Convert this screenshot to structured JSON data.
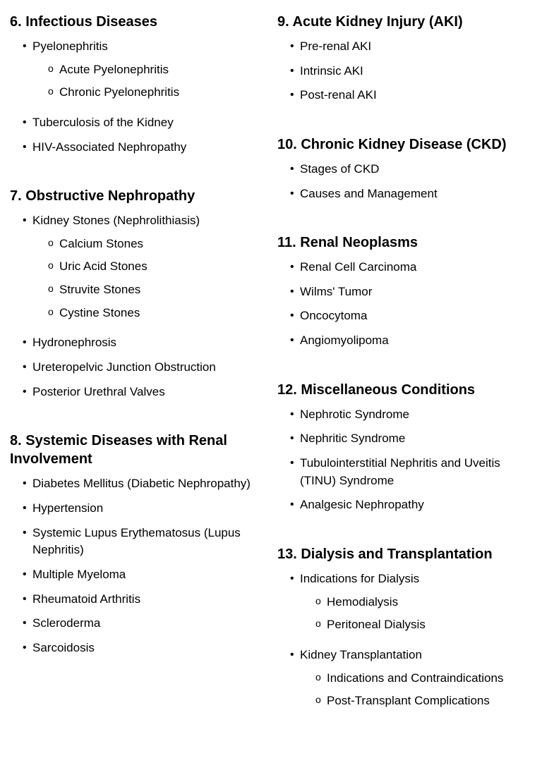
{
  "leftColumn": [
    {
      "title": "6. Infectious Diseases",
      "items": [
        {
          "label": "Pyelonephritis",
          "sub": [
            "Acute Pyelonephritis",
            "Chronic Pyelonephritis"
          ]
        },
        {
          "label": "Tuberculosis of the Kidney"
        },
        {
          "label": "HIV-Associated Nephropathy"
        }
      ]
    },
    {
      "title": "7. Obstructive Nephropathy",
      "items": [
        {
          "label": "Kidney Stones (Nephrolithiasis)",
          "sub": [
            "Calcium Stones",
            "Uric Acid Stones",
            "Struvite Stones",
            "Cystine Stones"
          ]
        },
        {
          "label": "Hydronephrosis"
        },
        {
          "label": "Ureteropelvic Junction Obstruction"
        },
        {
          "label": "Posterior Urethral Valves"
        }
      ]
    },
    {
      "title": "8. Systemic Diseases with Renal Involvement",
      "items": [
        {
          "label": "Diabetes Mellitus (Diabetic Nephropathy)"
        },
        {
          "label": "Hypertension"
        },
        {
          "label": "Systemic Lupus Erythematosus (Lupus Nephritis)"
        },
        {
          "label": "Multiple Myeloma"
        },
        {
          "label": "Rheumatoid Arthritis"
        },
        {
          "label": "Scleroderma"
        },
        {
          "label": "Sarcoidosis"
        }
      ]
    }
  ],
  "rightColumn": [
    {
      "title": "9. Acute Kidney Injury (AKI)",
      "items": [
        {
          "label": "Pre-renal AKI"
        },
        {
          "label": "Intrinsic AKI"
        },
        {
          "label": "Post-renal AKI"
        }
      ]
    },
    {
      "title": "10. Chronic Kidney Disease (CKD)",
      "items": [
        {
          "label": "Stages of CKD"
        },
        {
          "label": "Causes and Management"
        }
      ]
    },
    {
      "title": "11. Renal Neoplasms",
      "items": [
        {
          "label": "Renal Cell Carcinoma"
        },
        {
          "label": "Wilms' Tumor"
        },
        {
          "label": "Oncocytoma"
        },
        {
          "label": "Angiomyolipoma"
        }
      ]
    },
    {
      "title": "12. Miscellaneous Conditions",
      "items": [
        {
          "label": "Nephrotic Syndrome"
        },
        {
          "label": "Nephritic Syndrome"
        },
        {
          "label": "Tubulointerstitial Nephritis and Uveitis (TINU) Syndrome"
        },
        {
          "label": "Analgesic Nephropathy"
        }
      ]
    },
    {
      "title": "13. Dialysis and Transplantation",
      "items": [
        {
          "label": "Indications for Dialysis",
          "sub": [
            "Hemodialysis",
            "Peritoneal Dialysis"
          ]
        },
        {
          "label": "Kidney Transplantation",
          "sub": [
            "Indications and Contraindications",
            "Post-Transplant Complications"
          ]
        }
      ]
    }
  ]
}
